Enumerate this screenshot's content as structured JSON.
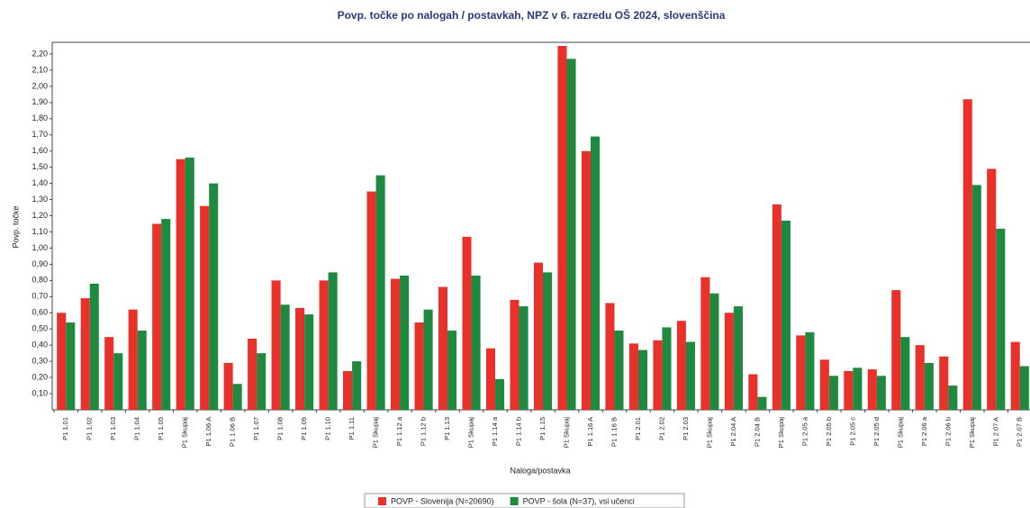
{
  "chart_data": {
    "type": "bar",
    "title": "Povp. točke po nalogah / postavkah, NPZ v 6. razredu OŠ 2024, slovenščina",
    "y_label": "Povp. točke",
    "x_label": "Naloga/postavka",
    "categories": [
      "P1 1.01",
      "P1 1.02",
      "P1 1.03",
      "P1 1.04",
      "P1 1.05",
      "P1 Skupaj",
      "P1 1.06 A",
      "P1 1.06 B",
      "P1 1.07",
      "P1 1.08",
      "P1 1.09",
      "P1 1.10",
      "P1 1.11",
      "P1 Skupaj",
      "P1 1.12 a",
      "P1 1.12 b",
      "P1 1.13",
      "P1 Skupaj",
      "P1 1.14 a",
      "P1 1.14 b",
      "P1 1.15",
      "P1 Skupaj",
      "P1 1.16 A",
      "P1 1.16 B",
      "P1 2.01",
      "P1 2.02",
      "P1 2.03",
      "P1 Skupaj",
      "P1 2.04 A",
      "P1 2.04 B",
      "P1 Skupaj",
      "P1 2.05 a",
      "P1 2.05 b",
      "P1 2.05 c",
      "P1 2.05 d",
      "P1 Skupaj",
      "P1 2.06 a",
      "P1 2.06 b",
      "P1 Skupaj",
      "P1 2.07 A",
      "P1 2.07 B"
    ],
    "series": [
      {
        "name": "POVP - Slovenija (N=20690)",
        "color": "#e8312a",
        "values": [
          0.6,
          0.69,
          0.45,
          0.62,
          1.15,
          1.55,
          1.26,
          0.29,
          0.44,
          0.8,
          0.63,
          0.8,
          0.24,
          1.35,
          0.81,
          0.54,
          0.76,
          1.07,
          0.38,
          0.68,
          0.91,
          2.25,
          1.6,
          0.66,
          0.41,
          0.43,
          0.55,
          0.82,
          0.6,
          0.22,
          1.27,
          0.46,
          0.31,
          0.24,
          0.25,
          0.74,
          0.4,
          0.33,
          1.92,
          1.49,
          0.42
        ]
      },
      {
        "name": "POVP - šola (N=37), vsi učenci",
        "color": "#1f8a3f",
        "values": [
          0.54,
          0.78,
          0.35,
          0.49,
          1.18,
          1.56,
          1.4,
          0.16,
          0.35,
          0.65,
          0.59,
          0.85,
          0.3,
          1.45,
          0.83,
          0.62,
          0.49,
          0.83,
          0.19,
          0.64,
          0.85,
          2.17,
          1.69,
          0.49,
          0.37,
          0.51,
          0.42,
          0.72,
          0.64,
          0.08,
          1.17,
          0.48,
          0.21,
          0.26,
          0.21,
          0.45,
          0.29,
          0.15,
          1.39,
          1.12,
          0.27
        ]
      }
    ],
    "ylim": [
      0,
      2.25
    ],
    "yticks": [
      {
        "value": 0.1,
        "label": "0,10"
      },
      {
        "value": 0.2,
        "label": "0,20"
      },
      {
        "value": 0.3,
        "label": "0,30"
      },
      {
        "value": 0.4,
        "label": "0,40"
      },
      {
        "value": 0.5,
        "label": "0,50"
      },
      {
        "value": 0.6,
        "label": "0,60"
      },
      {
        "value": 0.7,
        "label": "0,70"
      },
      {
        "value": 0.8,
        "label": "0,80"
      },
      {
        "value": 0.9,
        "label": "0,90"
      },
      {
        "value": 1.0,
        "label": "1,00"
      },
      {
        "value": 1.1,
        "label": "1,10"
      },
      {
        "value": 1.2,
        "label": "1,20"
      },
      {
        "value": 1.3,
        "label": "1,30"
      },
      {
        "value": 1.4,
        "label": "1,40"
      },
      {
        "value": 1.5,
        "label": "1,50"
      },
      {
        "value": 1.6,
        "label": "1,60"
      },
      {
        "value": 1.7,
        "label": "1,70"
      },
      {
        "value": 1.8,
        "label": "1,80"
      },
      {
        "value": 1.9,
        "label": "1,90"
      },
      {
        "value": 2.0,
        "label": "2,00"
      },
      {
        "value": 2.1,
        "label": "2,10"
      },
      {
        "value": 2.2,
        "label": "2,20"
      }
    ],
    "grid": false,
    "legend": "bottom"
  }
}
